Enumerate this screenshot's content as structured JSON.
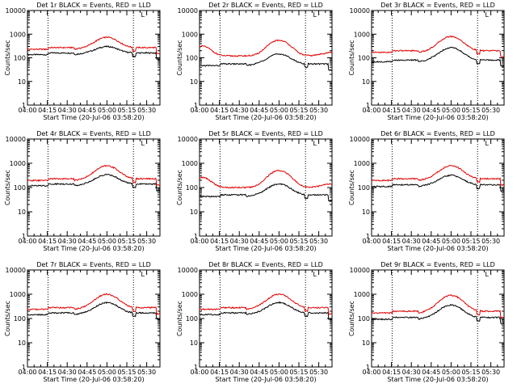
{
  "chart_data": [
    {
      "type": "line",
      "title": "Det 1r BLACK = Events, RED = LLD",
      "xlabel": "Start Time (20-Jul-06 03:58:20)",
      "ylabel": "Counts/sec",
      "yscale": "log",
      "ylim": [
        1,
        10000
      ],
      "xlim": [
        240,
        340
      ],
      "xticks": [
        "04:00",
        "04:15",
        "04:30",
        "04:45",
        "05:00",
        "05:15",
        "05:30"
      ],
      "yticks": [
        "1",
        "10",
        "100",
        "1000",
        "10000"
      ],
      "marker": "L",
      "vlines": [
        255.5,
        320
      ],
      "series": [
        {
          "name": "Events",
          "color": "#000000",
          "baseline": 160,
          "amp": 140,
          "pattern": "A"
        },
        {
          "name": "LLD",
          "color": "#e00000",
          "baseline": 270,
          "amp": 470,
          "pattern": "A"
        }
      ]
    },
    {
      "type": "line",
      "title": "Det 2r BLACK = Events, RED = LLD",
      "xlabel": "Start Time (20-Jul-06 03:58:20)",
      "ylabel": "Counts/sec",
      "yscale": "log",
      "ylim": [
        1,
        10000
      ],
      "xlim": [
        240,
        340
      ],
      "xticks": [
        "04:00",
        "04:15",
        "04:30",
        "04:45",
        "05:00",
        "05:15",
        "05:30"
      ],
      "yticks": [
        "1",
        "10",
        "100",
        "1000",
        "10000"
      ],
      "marker": "L",
      "vlines": [
        255.5,
        320
      ],
      "series": [
        {
          "name": "Events",
          "color": "#000000",
          "baseline": 55,
          "amp": 90,
          "pattern": "A"
        },
        {
          "name": "LLD",
          "color": "#e00000",
          "baseline": 120,
          "amp": 430,
          "pattern": "B"
        }
      ]
    },
    {
      "type": "line",
      "title": "Det 3r BLACK = Events, RED = LLD",
      "xlabel": "Start Time (20-Jul-06 03:58:20)",
      "ylabel": "Counts/sec",
      "yscale": "log",
      "ylim": [
        1,
        10000
      ],
      "xlim": [
        240,
        340
      ],
      "xticks": [
        "04:00",
        "04:15",
        "04:30",
        "04:45",
        "05:00",
        "05:15",
        "05:30"
      ],
      "yticks": [
        "1",
        "10",
        "100",
        "1000",
        "10000"
      ],
      "marker": "L",
      "vlines": [
        255.5,
        320
      ],
      "series": [
        {
          "name": "Events",
          "color": "#000000",
          "baseline": 80,
          "amp": 190,
          "pattern": "A"
        },
        {
          "name": "LLD",
          "color": "#e00000",
          "baseline": 200,
          "amp": 600,
          "pattern": "A"
        }
      ]
    },
    {
      "type": "line",
      "title": "Det 4r BLACK = Events, RED = LLD",
      "xlabel": "Start Time (20-Jul-06 03:58:20)",
      "ylabel": "Counts/sec",
      "yscale": "log",
      "ylim": [
        1,
        10000
      ],
      "xlim": [
        240,
        340
      ],
      "xticks": [
        "04:00",
        "04:15",
        "04:30",
        "04:45",
        "05:00",
        "05:15",
        "05:30"
      ],
      "yticks": [
        "1",
        "10",
        "100",
        "1000",
        "10000"
      ],
      "marker": "L",
      "vlines": [
        255.5,
        320
      ],
      "series": [
        {
          "name": "Events",
          "color": "#000000",
          "baseline": 140,
          "amp": 200,
          "pattern": "A"
        },
        {
          "name": "LLD",
          "color": "#e00000",
          "baseline": 230,
          "amp": 560,
          "pattern": "A"
        }
      ]
    },
    {
      "type": "line",
      "title": "Det 5r BLACK = Events, RED = LLD",
      "xlabel": "Start Time (20-Jul-06 03:58:20)",
      "ylabel": "Counts/sec",
      "yscale": "log",
      "ylim": [
        1,
        10000
      ],
      "xlim": [
        240,
        340
      ],
      "xticks": [
        "04:00",
        "04:15",
        "04:30",
        "04:45",
        "05:00",
        "05:15",
        "05:30"
      ],
      "yticks": [
        "1",
        "10",
        "100",
        "1000",
        "10000"
      ],
      "marker": "L",
      "vlines": [
        255.5,
        320
      ],
      "series": [
        {
          "name": "Events",
          "color": "#000000",
          "baseline": 50,
          "amp": 90,
          "pattern": "A"
        },
        {
          "name": "LLD",
          "color": "#e00000",
          "baseline": 100,
          "amp": 400,
          "pattern": "B"
        }
      ]
    },
    {
      "type": "line",
      "title": "Det 6r BLACK = Events, RED = LLD",
      "xlabel": "Start Time (20-Jul-06 03:58:20)",
      "ylabel": "Counts/sec",
      "yscale": "log",
      "ylim": [
        1,
        10000
      ],
      "xlim": [
        240,
        340
      ],
      "xticks": [
        "04:00",
        "04:15",
        "04:30",
        "04:45",
        "05:00",
        "05:15",
        "05:30"
      ],
      "yticks": [
        "1",
        "10",
        "100",
        "1000",
        "10000"
      ],
      "marker": "L",
      "vlines": [
        255.5,
        320
      ],
      "series": [
        {
          "name": "Events",
          "color": "#000000",
          "baseline": 130,
          "amp": 190,
          "pattern": "A"
        },
        {
          "name": "LLD",
          "color": "#e00000",
          "baseline": 230,
          "amp": 560,
          "pattern": "A"
        }
      ]
    },
    {
      "type": "line",
      "title": "Det 7r BLACK = Events, RED = LLD",
      "xlabel": "Start Time (20-Jul-06 03:58:20)",
      "ylabel": "Counts/sec",
      "yscale": "log",
      "ylim": [
        1,
        10000
      ],
      "xlim": [
        240,
        340
      ],
      "xticks": [
        "04:00",
        "04:15",
        "04:30",
        "04:45",
        "05:00",
        "05:15",
        "05:30"
      ],
      "yticks": [
        "1",
        "10",
        "100",
        "1000",
        "10000"
      ],
      "marker": "L",
      "vlines": [
        255.5,
        320
      ],
      "series": [
        {
          "name": "Events",
          "color": "#000000",
          "baseline": 170,
          "amp": 280,
          "pattern": "A"
        },
        {
          "name": "LLD",
          "color": "#e00000",
          "baseline": 280,
          "amp": 720,
          "pattern": "A"
        }
      ]
    },
    {
      "type": "line",
      "title": "Det 8r BLACK = Events, RED = LLD",
      "xlabel": "Start Time (20-Jul-06 03:58:20)",
      "ylabel": "Counts/sec",
      "yscale": "log",
      "ylim": [
        1,
        10000
      ],
      "xlim": [
        240,
        340
      ],
      "xticks": [
        "04:00",
        "04:15",
        "04:30",
        "04:45",
        "05:00",
        "05:15",
        "05:30"
      ],
      "yticks": [
        "1",
        "10",
        "100",
        "1000",
        "10000"
      ],
      "marker": "L",
      "vlines": [
        255.5,
        320
      ],
      "series": [
        {
          "name": "Events",
          "color": "#000000",
          "baseline": 170,
          "amp": 280,
          "pattern": "A"
        },
        {
          "name": "LLD",
          "color": "#e00000",
          "baseline": 280,
          "amp": 720,
          "pattern": "A"
        }
      ]
    },
    {
      "type": "line",
      "title": "Det 9r BLACK = Events, RED = LLD",
      "xlabel": "Start Time (20-Jul-06 03:58:20)",
      "ylabel": "Counts/sec",
      "yscale": "log",
      "ylim": [
        1,
        10000
      ],
      "xlim": [
        240,
        340
      ],
      "xticks": [
        "04:00",
        "04:15",
        "04:30",
        "04:45",
        "05:00",
        "05:15",
        "05:30"
      ],
      "yticks": [
        "1",
        "10",
        "100",
        "1000",
        "10000"
      ],
      "marker": "L",
      "vlines": [
        255.5,
        320
      ],
      "series": [
        {
          "name": "Events",
          "color": "#000000",
          "baseline": 110,
          "amp": 250,
          "pattern": "A"
        },
        {
          "name": "LLD",
          "color": "#e00000",
          "baseline": 200,
          "amp": 700,
          "pattern": "A"
        }
      ]
    }
  ]
}
